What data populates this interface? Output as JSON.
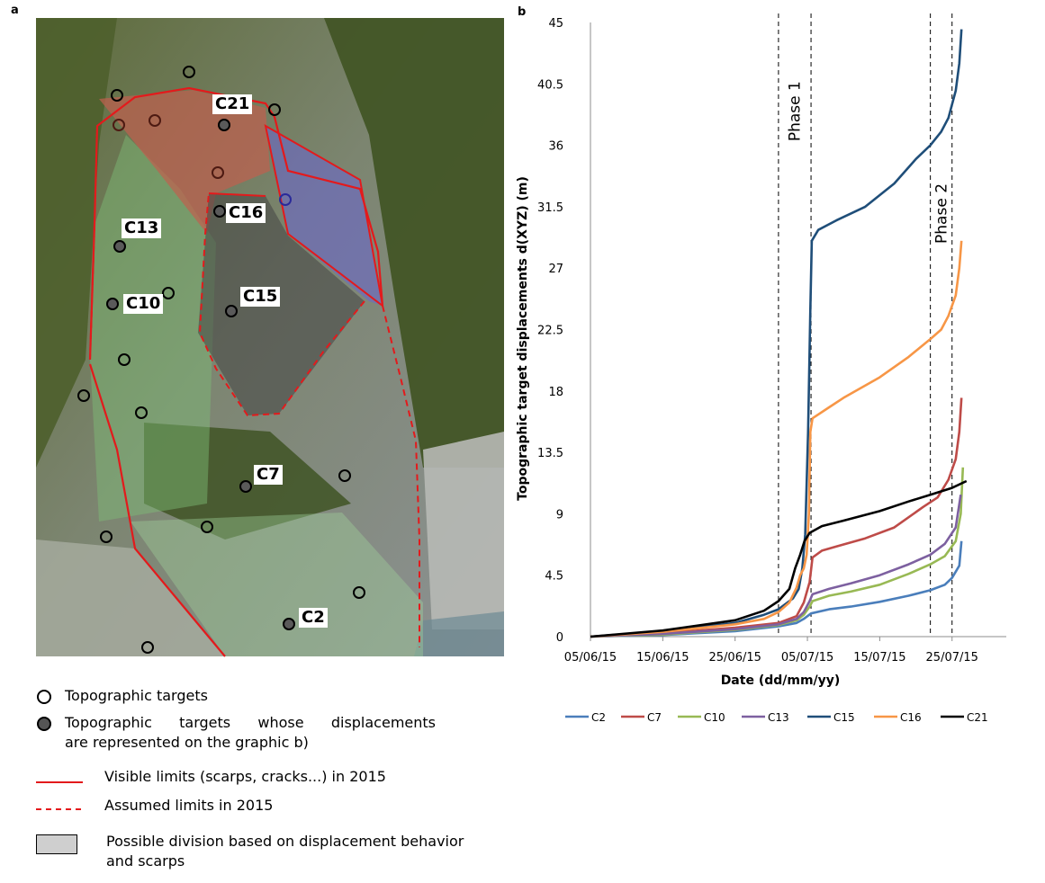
{
  "panels": {
    "a": "a",
    "b": "b"
  },
  "map": {
    "target_labels": [
      "C21",
      "C16",
      "C13",
      "C10",
      "C15",
      "C7",
      "C2"
    ]
  },
  "legend_left": {
    "topographic_targets": "Topographic targets",
    "represented_targets": "Topographic  targets  whose  displacements are represented on the graphic b)",
    "represented_line1": "Topographic  targets  whose  displacements",
    "represented_line2": "are represented on the graphic b)",
    "visible_limits": "Visible limits (scarps, cracks...) in 2015",
    "assumed_limits": "Assumed limits in 2015",
    "division_line1": "Possible division based on displacement behavior",
    "division_line2": "and scarps",
    "colors": {
      "limit": "#e31a1c"
    }
  },
  "chart_data": {
    "type": "line",
    "title": "",
    "xlabel": "Date (dd/mm/yy)",
    "ylabel": "Topographic target displacements d(XYZ) (m)",
    "x_tick_labels": [
      "05/06/15",
      "15/06/15",
      "25/06/15",
      "05/07/15",
      "15/07/15",
      "25/07/15"
    ],
    "x_tick_days": [
      0,
      10,
      20,
      30,
      40,
      50
    ],
    "xlim_days": [
      0,
      57.5
    ],
    "y_tick_labels": [
      "0",
      "4.5",
      "9",
      "13.5",
      "18",
      "22.5",
      "27",
      "31.5",
      "36",
      "40.5",
      "45"
    ],
    "ylim": [
      0,
      45
    ],
    "phase_lines_days": [
      26,
      30.5,
      47,
      50
    ],
    "annotations": [
      {
        "text": "Phase 1",
        "day": 28.2,
        "y": 38.5
      },
      {
        "text": "Phase 2",
        "day": 48.5,
        "y": 31
      }
    ],
    "series": [
      {
        "name": "C2",
        "color": "#4a7ebb",
        "points": [
          [
            0,
            0
          ],
          [
            10,
            0.12
          ],
          [
            20,
            0.4
          ],
          [
            26,
            0.75
          ],
          [
            28.5,
            1.0
          ],
          [
            29.5,
            1.3
          ],
          [
            30.5,
            1.7
          ],
          [
            33,
            2.0
          ],
          [
            36,
            2.2
          ],
          [
            40,
            2.55
          ],
          [
            44,
            3.0
          ],
          [
            47,
            3.4
          ],
          [
            49,
            3.8
          ],
          [
            50,
            4.3
          ],
          [
            51,
            5.2
          ],
          [
            51.3,
            7.0
          ]
        ]
      },
      {
        "name": "C7",
        "color": "#be4b48",
        "points": [
          [
            0,
            0
          ],
          [
            10,
            0.25
          ],
          [
            20,
            0.65
          ],
          [
            26,
            1.0
          ],
          [
            28.5,
            1.5
          ],
          [
            29.5,
            2.5
          ],
          [
            30.3,
            4.0
          ],
          [
            30.7,
            5.8
          ],
          [
            32,
            6.3
          ],
          [
            34,
            6.6
          ],
          [
            38,
            7.2
          ],
          [
            42,
            8.0
          ],
          [
            46,
            9.5
          ],
          [
            48,
            10.2
          ],
          [
            49.5,
            11.5
          ],
          [
            50.5,
            13.0
          ],
          [
            51,
            15.0
          ],
          [
            51.3,
            17.5
          ]
        ]
      },
      {
        "name": "C10",
        "color": "#98b954",
        "points": [
          [
            0,
            0
          ],
          [
            10,
            0.15
          ],
          [
            20,
            0.5
          ],
          [
            26,
            0.85
          ],
          [
            28.5,
            1.2
          ],
          [
            29.5,
            1.6
          ],
          [
            30.3,
            2.2
          ],
          [
            30.7,
            2.6
          ],
          [
            33,
            3.0
          ],
          [
            36,
            3.3
          ],
          [
            40,
            3.8
          ],
          [
            44,
            4.6
          ],
          [
            47,
            5.3
          ],
          [
            49,
            5.9
          ],
          [
            50.5,
            7.0
          ],
          [
            51.2,
            9.0
          ],
          [
            51.5,
            12.4
          ]
        ]
      },
      {
        "name": "C13",
        "color": "#7d60a0",
        "points": [
          [
            0,
            0
          ],
          [
            10,
            0.2
          ],
          [
            20,
            0.55
          ],
          [
            26,
            0.9
          ],
          [
            28.5,
            1.3
          ],
          [
            29.5,
            1.8
          ],
          [
            30.3,
            2.6
          ],
          [
            30.7,
            3.1
          ],
          [
            33,
            3.5
          ],
          [
            36,
            3.9
          ],
          [
            40,
            4.5
          ],
          [
            44,
            5.3
          ],
          [
            47,
            6.0
          ],
          [
            49,
            6.8
          ],
          [
            50.5,
            8.0
          ],
          [
            51.2,
            10.4
          ]
        ]
      },
      {
        "name": "C15",
        "color": "#1f4e79",
        "points": [
          [
            0,
            0
          ],
          [
            10,
            0.4
          ],
          [
            20,
            1.0
          ],
          [
            24,
            1.6
          ],
          [
            26,
            2.0
          ],
          [
            28,
            2.8
          ],
          [
            28.8,
            3.5
          ],
          [
            29.3,
            5.0
          ],
          [
            29.7,
            7.5
          ],
          [
            30.1,
            15.0
          ],
          [
            30.4,
            24.0
          ],
          [
            30.6,
            29.0
          ],
          [
            31.5,
            29.8
          ],
          [
            34,
            30.5
          ],
          [
            38,
            31.5
          ],
          [
            42,
            33.2
          ],
          [
            45,
            35.0
          ],
          [
            47,
            36.0
          ],
          [
            48.5,
            37.0
          ],
          [
            49.5,
            38.0
          ],
          [
            50.5,
            40.0
          ],
          [
            51,
            42.0
          ],
          [
            51.3,
            44.5
          ]
        ]
      },
      {
        "name": "C16",
        "color": "#f79646",
        "points": [
          [
            0,
            0
          ],
          [
            10,
            0.35
          ],
          [
            20,
            0.9
          ],
          [
            24,
            1.3
          ],
          [
            26,
            1.8
          ],
          [
            27.5,
            2.5
          ],
          [
            28.5,
            3.6
          ],
          [
            29,
            4.5
          ],
          [
            29.5,
            5.0
          ],
          [
            29.9,
            6.0
          ],
          [
            30.2,
            9.0
          ],
          [
            30.4,
            15.0
          ],
          [
            30.7,
            16.0
          ],
          [
            33,
            16.8
          ],
          [
            35,
            17.5
          ],
          [
            40,
            19.0
          ],
          [
            44,
            20.5
          ],
          [
            47,
            21.8
          ],
          [
            48.5,
            22.5
          ],
          [
            49.5,
            23.5
          ],
          [
            50.5,
            25.0
          ],
          [
            51,
            27.0
          ],
          [
            51.3,
            29.0
          ]
        ]
      },
      {
        "name": "C21",
        "color": "#000000",
        "points": [
          [
            0,
            0
          ],
          [
            10,
            0.45
          ],
          [
            20,
            1.2
          ],
          [
            24,
            1.9
          ],
          [
            26,
            2.6
          ],
          [
            27.5,
            3.5
          ],
          [
            28.3,
            5.0
          ],
          [
            29,
            6.0
          ],
          [
            29.6,
            7.0
          ],
          [
            30.3,
            7.6
          ],
          [
            32,
            8.1
          ],
          [
            35,
            8.5
          ],
          [
            40,
            9.2
          ],
          [
            44,
            9.9
          ],
          [
            47,
            10.4
          ],
          [
            50,
            10.9
          ],
          [
            52,
            11.4
          ]
        ]
      }
    ]
  }
}
